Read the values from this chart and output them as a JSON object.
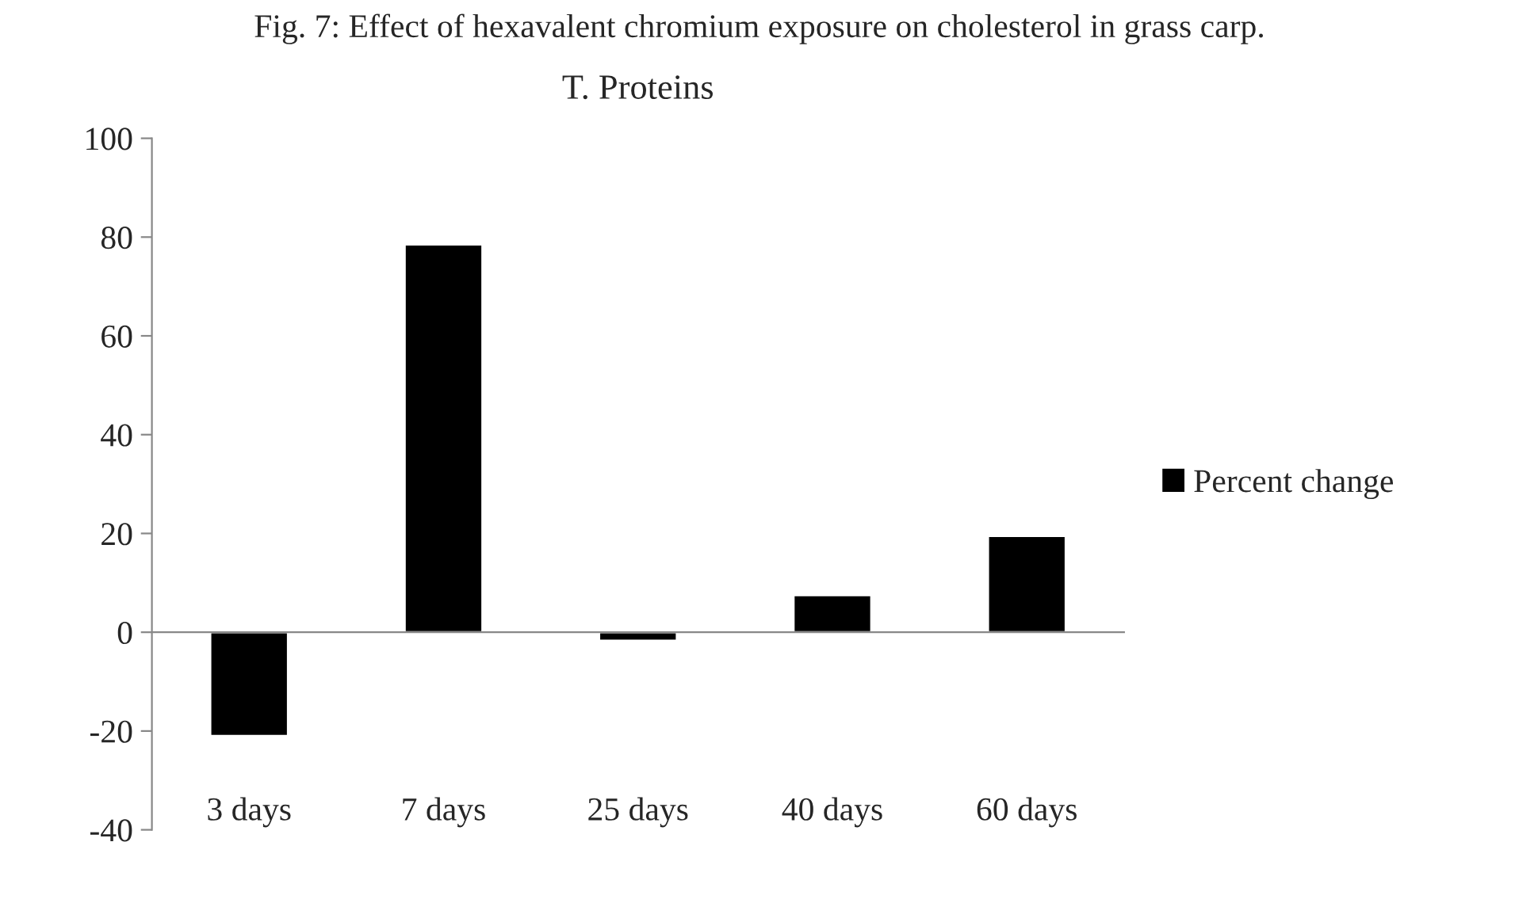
{
  "chart_data": {
    "type": "bar",
    "title": "T. Proteins",
    "annotations": [
      "Fig. 7: Effect of hexavalent chromium exposure on cholesterol in grass carp."
    ],
    "categories": [
      "3 days",
      "7 days",
      "25 days",
      "40 days",
      "60 days"
    ],
    "series": [
      {
        "name": "Percent change",
        "color": "#000000",
        "values": [
          -21,
          78.5,
          -1.7,
          7.5,
          19.5
        ]
      }
    ],
    "ylim": [
      -40,
      100
    ],
    "yticks": [
      -40,
      -20,
      0,
      20,
      40,
      60,
      80,
      100
    ],
    "legend": "right"
  }
}
